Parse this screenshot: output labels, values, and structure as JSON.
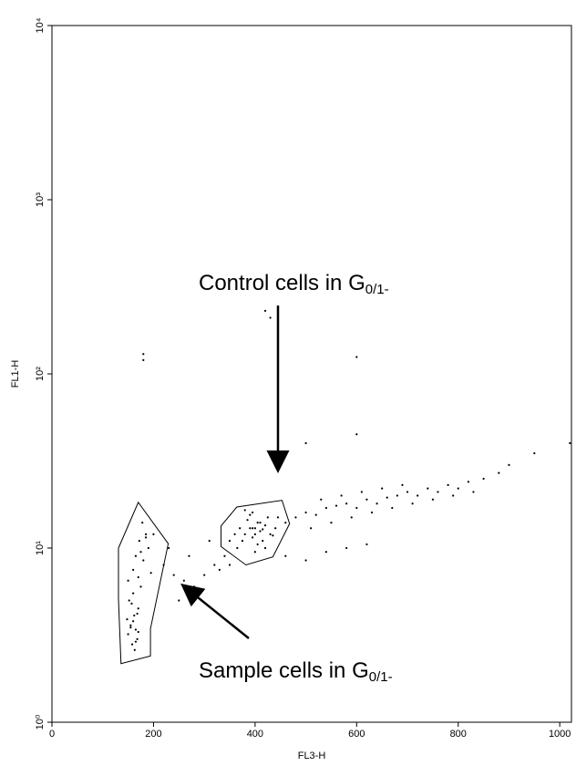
{
  "chart_data": {
    "type": "scatter",
    "x_label": "FL3-H",
    "y_label": "FL1-H",
    "xlim": [
      0,
      1023
    ],
    "xticks": [
      0,
      200,
      400,
      600,
      800,
      1000
    ],
    "ylim": [
      1,
      10000
    ],
    "yscale": "log",
    "yticks": [
      {
        "value": 1,
        "label": "10⁰"
      },
      {
        "value": 10,
        "label": "10¹"
      },
      {
        "value": 100,
        "label": "10²"
      },
      {
        "value": 1000,
        "label": "10³"
      },
      {
        "value": 10000,
        "label": "10⁴"
      }
    ],
    "color": "#000000",
    "x": [
      150,
      155,
      160,
      162,
      165,
      168,
      170,
      158,
      152,
      175,
      160,
      165,
      172,
      148,
      163,
      157,
      170,
      180,
      185,
      190,
      178,
      170,
      160,
      155,
      165,
      175,
      185,
      168,
      150,
      195,
      380,
      390,
      395,
      400,
      405,
      410,
      415,
      420,
      385,
      375,
      395,
      405,
      425,
      430,
      400,
      370,
      360,
      390,
      410,
      440,
      350,
      365,
      380,
      400,
      420,
      445,
      460,
      395,
      415,
      435,
      480,
      500,
      520,
      540,
      560,
      580,
      600,
      620,
      640,
      660,
      680,
      700,
      720,
      740,
      760,
      780,
      800,
      820,
      850,
      880,
      900,
      510,
      550,
      590,
      630,
      670,
      710,
      750,
      790,
      830,
      530,
      570,
      610,
      650,
      690,
      220,
      240,
      260,
      280,
      300,
      320,
      340,
      250,
      290,
      330,
      200,
      230,
      270,
      310,
      350,
      460,
      500,
      540,
      580,
      620,
      180,
      180,
      420,
      430,
      600,
      600,
      500,
      950,
      1020
    ],
    "values": [
      3.2,
      3.6,
      3.8,
      4.1,
      3.4,
      3.0,
      4.5,
      2.8,
      5.0,
      6.0,
      7.5,
      9.0,
      11,
      3.9,
      2.6,
      4.8,
      3.3,
      8.5,
      12,
      10,
      14,
      6.8,
      5.5,
      3.5,
      2.9,
      9.5,
      11.5,
      4.2,
      6.5,
      7.2,
      12,
      13,
      11.5,
      13,
      14,
      12.5,
      11,
      13.5,
      14.5,
      11,
      16,
      10.5,
      15,
      12,
      9.5,
      13,
      12,
      15.5,
      14,
      13,
      11,
      10,
      16.5,
      12,
      10,
      15,
      14,
      13,
      12.8,
      11.8,
      15,
      16,
      15.5,
      17,
      17.5,
      18,
      17,
      19,
      18,
      19.5,
      20,
      21,
      20,
      22,
      21,
      23,
      22,
      24,
      25,
      27,
      30,
      13,
      14,
      15,
      16,
      17,
      18,
      19,
      20,
      21,
      19,
      20,
      21,
      22,
      23,
      8,
      7,
      6.5,
      6,
      7,
      8,
      9,
      5,
      5.5,
      7.5,
      12,
      10,
      9,
      11,
      8,
      9,
      8.5,
      9.5,
      10,
      10.5,
      130,
      120,
      230,
      210,
      125,
      45,
      40,
      35,
      40
    ],
    "gates": [
      {
        "x": [
          131,
          170,
          229,
          194,
          194,
          136,
          131
        ],
        "y": [
          10,
          18.3,
          10.6,
          3.44,
          2.4,
          2.17,
          5.08
        ]
      },
      {
        "x": [
          333,
          364,
          453,
          468,
          435,
          382,
          333
        ],
        "y": [
          13.4,
          17.2,
          18.8,
          13.8,
          8.9,
          8.0,
          10.2
        ]
      }
    ],
    "annotations": [
      {
        "text": "Control cells in G",
        "sub": "0/1-"
      },
      {
        "text": "Sample cells in G",
        "sub": "0/1-"
      }
    ]
  }
}
